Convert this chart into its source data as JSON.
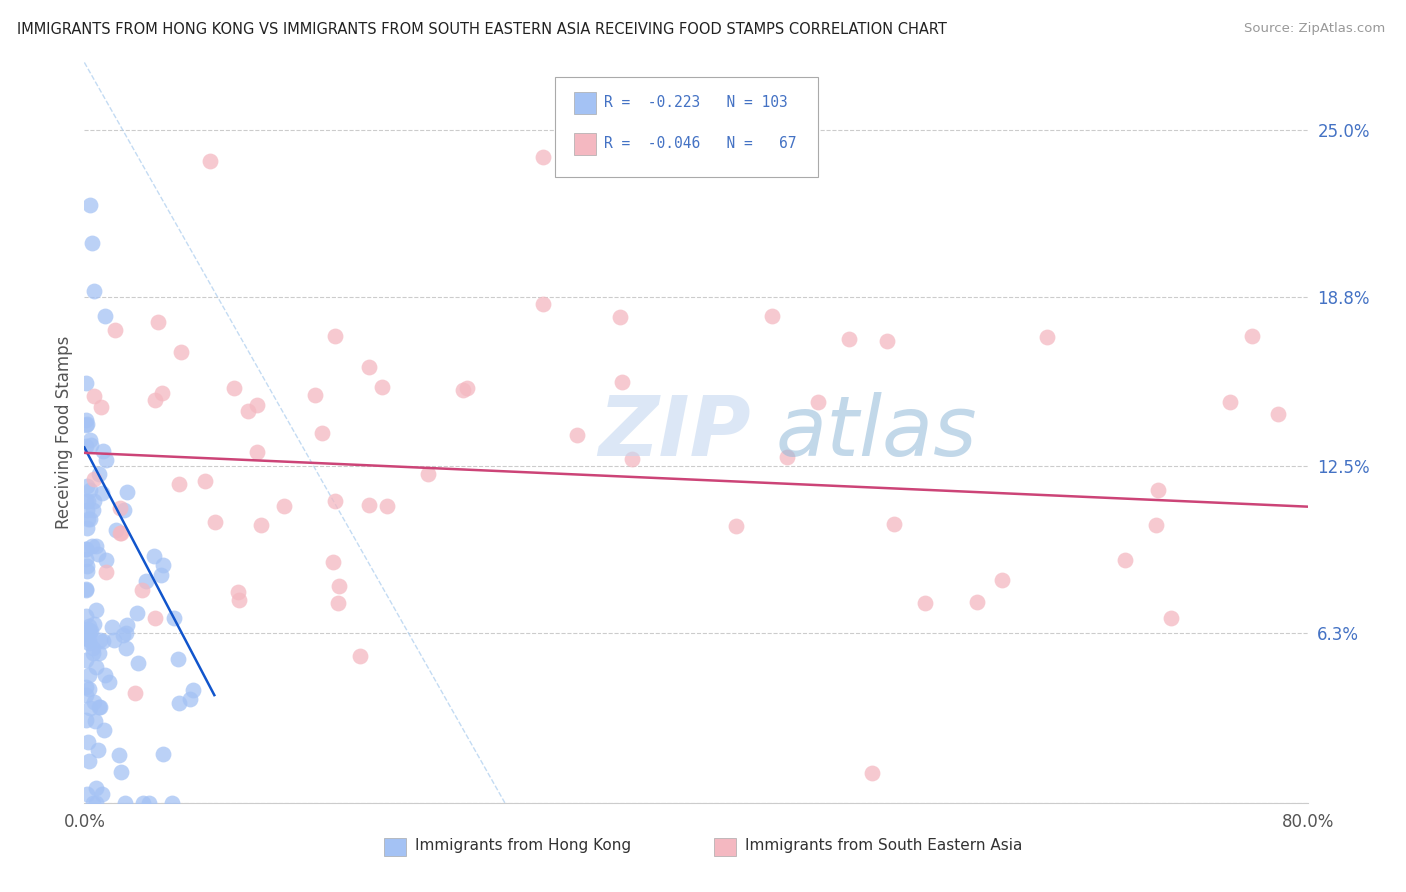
{
  "title": "IMMIGRANTS FROM HONG KONG VS IMMIGRANTS FROM SOUTH EASTERN ASIA RECEIVING FOOD STAMPS CORRELATION CHART",
  "source": "Source: ZipAtlas.com",
  "ylabel": "Receiving Food Stamps",
  "yticks": [
    0.0,
    0.063,
    0.125,
    0.188,
    0.25
  ],
  "ytick_labels": [
    "",
    "6.3%",
    "12.5%",
    "18.8%",
    "25.0%"
  ],
  "xmin": 0.0,
  "xmax": 0.8,
  "ymin": 0.0,
  "ymax": 0.275,
  "color_hk": "#a4c2f4",
  "color_sea": "#f4b8c1",
  "color_hk_line": "#1155cc",
  "color_sea_line": "#cc4477",
  "seed_hk": 42,
  "seed_sea": 99,
  "n_hk": 103,
  "n_sea": 67,
  "r_hk": -0.223,
  "r_sea": -0.046,
  "hk_line_x0": 0.0,
  "hk_line_x1": 0.085,
  "hk_line_y0": 0.132,
  "hk_line_y1": 0.04,
  "sea_line_x0": 0.0,
  "sea_line_x1": 0.8,
  "sea_line_y0": 0.13,
  "sea_line_y1": 0.11,
  "ref_line_x0": 0.0,
  "ref_line_x1": 0.275,
  "ref_line_y0": 0.275,
  "ref_line_y1": 0.0
}
